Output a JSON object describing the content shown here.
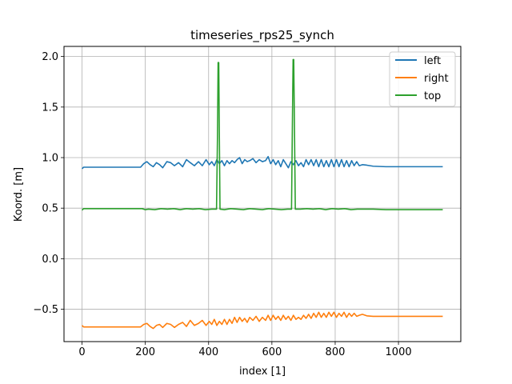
{
  "chart_data": {
    "type": "line",
    "title": "timeseries_rps25_synch",
    "xlabel": "index [1]",
    "ylabel": "Koord. [m]",
    "xlim": [
      -57,
      1197
    ],
    "ylim": [
      -0.82,
      2.1
    ],
    "xticks": [
      0,
      200,
      400,
      600,
      800,
      1000
    ],
    "yticks": [
      -0.5,
      0.0,
      0.5,
      1.0,
      1.5,
      2.0
    ],
    "xtick_labels": [
      "0",
      "200",
      "400",
      "600",
      "800",
      "1000"
    ],
    "ytick_labels": [
      "−0.5",
      "0.0",
      "0.5",
      "1.0",
      "1.5",
      "2.0"
    ],
    "grid": true,
    "legend_position": "top-right",
    "series": [
      {
        "name": "left",
        "color": "#1f77b4",
        "description_points": [
          [
            0,
            0.89
          ],
          [
            5,
            0.905
          ],
          [
            30,
            0.905
          ],
          [
            100,
            0.905
          ],
          [
            185,
            0.905
          ],
          [
            195,
            0.94
          ],
          [
            205,
            0.96
          ],
          [
            215,
            0.93
          ],
          [
            225,
            0.91
          ],
          [
            235,
            0.95
          ],
          [
            245,
            0.93
          ],
          [
            255,
            0.9
          ],
          [
            268,
            0.96
          ],
          [
            280,
            0.95
          ],
          [
            292,
            0.92
          ],
          [
            305,
            0.95
          ],
          [
            318,
            0.91
          ],
          [
            330,
            0.98
          ],
          [
            342,
            0.95
          ],
          [
            355,
            0.92
          ],
          [
            368,
            0.96
          ],
          [
            380,
            0.92
          ],
          [
            392,
            0.98
          ],
          [
            402,
            0.93
          ],
          [
            410,
            0.96
          ],
          [
            418,
            0.92
          ],
          [
            426,
            0.98
          ],
          [
            434,
            0.94
          ],
          [
            442,
            0.97
          ],
          [
            450,
            0.92
          ],
          [
            458,
            0.97
          ],
          [
            466,
            0.94
          ],
          [
            474,
            0.97
          ],
          [
            482,
            0.95
          ],
          [
            490,
            0.98
          ],
          [
            498,
            1.0
          ],
          [
            506,
            0.94
          ],
          [
            514,
            0.98
          ],
          [
            522,
            0.96
          ],
          [
            530,
            0.97
          ],
          [
            540,
            0.99
          ],
          [
            550,
            0.95
          ],
          [
            560,
            0.98
          ],
          [
            570,
            0.96
          ],
          [
            580,
            0.97
          ],
          [
            588,
            1.01
          ],
          [
            596,
            0.94
          ],
          [
            604,
            0.98
          ],
          [
            612,
            0.93
          ],
          [
            620,
            0.97
          ],
          [
            628,
            0.91
          ],
          [
            636,
            0.98
          ],
          [
            644,
            0.94
          ],
          [
            652,
            0.9
          ],
          [
            660,
            0.96
          ],
          [
            668,
            0.93
          ],
          [
            676,
            0.97
          ],
          [
            684,
            0.92
          ],
          [
            692,
            0.95
          ],
          [
            700,
            0.91
          ],
          [
            708,
            0.98
          ],
          [
            716,
            0.93
          ],
          [
            724,
            0.98
          ],
          [
            732,
            0.92
          ],
          [
            740,
            0.98
          ],
          [
            748,
            0.91
          ],
          [
            756,
            0.98
          ],
          [
            764,
            0.91
          ],
          [
            772,
            0.97
          ],
          [
            780,
            0.91
          ],
          [
            788,
            0.98
          ],
          [
            796,
            0.91
          ],
          [
            804,
            0.98
          ],
          [
            812,
            0.91
          ],
          [
            820,
            0.98
          ],
          [
            828,
            0.91
          ],
          [
            836,
            0.97
          ],
          [
            844,
            0.91
          ],
          [
            852,
            0.97
          ],
          [
            860,
            0.92
          ],
          [
            868,
            0.96
          ],
          [
            876,
            0.92
          ],
          [
            886,
            0.93
          ],
          [
            900,
            0.925
          ],
          [
            920,
            0.915
          ],
          [
            960,
            0.91
          ],
          [
            1000,
            0.91
          ],
          [
            1140,
            0.91
          ]
        ]
      },
      {
        "name": "right",
        "color": "#ff7f0e",
        "description_points": [
          [
            0,
            -0.66
          ],
          [
            5,
            -0.675
          ],
          [
            40,
            -0.675
          ],
          [
            120,
            -0.675
          ],
          [
            185,
            -0.675
          ],
          [
            195,
            -0.65
          ],
          [
            205,
            -0.64
          ],
          [
            215,
            -0.67
          ],
          [
            225,
            -0.69
          ],
          [
            235,
            -0.66
          ],
          [
            245,
            -0.65
          ],
          [
            255,
            -0.68
          ],
          [
            268,
            -0.64
          ],
          [
            280,
            -0.65
          ],
          [
            292,
            -0.68
          ],
          [
            305,
            -0.65
          ],
          [
            318,
            -0.63
          ],
          [
            330,
            -0.67
          ],
          [
            342,
            -0.61
          ],
          [
            355,
            -0.66
          ],
          [
            368,
            -0.64
          ],
          [
            380,
            -0.61
          ],
          [
            392,
            -0.66
          ],
          [
            402,
            -0.62
          ],
          [
            410,
            -0.65
          ],
          [
            418,
            -0.6
          ],
          [
            426,
            -0.66
          ],
          [
            434,
            -0.62
          ],
          [
            442,
            -0.65
          ],
          [
            450,
            -0.6
          ],
          [
            458,
            -0.65
          ],
          [
            466,
            -0.6
          ],
          [
            474,
            -0.64
          ],
          [
            482,
            -0.58
          ],
          [
            490,
            -0.63
          ],
          [
            498,
            -0.58
          ],
          [
            506,
            -0.62
          ],
          [
            514,
            -0.59
          ],
          [
            522,
            -0.63
          ],
          [
            530,
            -0.58
          ],
          [
            540,
            -0.61
          ],
          [
            550,
            -0.57
          ],
          [
            560,
            -0.62
          ],
          [
            570,
            -0.58
          ],
          [
            580,
            -0.61
          ],
          [
            588,
            -0.56
          ],
          [
            596,
            -0.61
          ],
          [
            604,
            -0.56
          ],
          [
            612,
            -0.6
          ],
          [
            620,
            -0.57
          ],
          [
            628,
            -0.61
          ],
          [
            636,
            -0.56
          ],
          [
            644,
            -0.6
          ],
          [
            652,
            -0.57
          ],
          [
            660,
            -0.61
          ],
          [
            668,
            -0.56
          ],
          [
            676,
            -0.6
          ],
          [
            684,
            -0.58
          ],
          [
            692,
            -0.6
          ],
          [
            700,
            -0.56
          ],
          [
            708,
            -0.59
          ],
          [
            716,
            -0.55
          ],
          [
            724,
            -0.59
          ],
          [
            732,
            -0.54
          ],
          [
            740,
            -0.58
          ],
          [
            748,
            -0.53
          ],
          [
            756,
            -0.58
          ],
          [
            764,
            -0.54
          ],
          [
            772,
            -0.58
          ],
          [
            780,
            -0.53
          ],
          [
            788,
            -0.57
          ],
          [
            796,
            -0.53
          ],
          [
            804,
            -0.58
          ],
          [
            812,
            -0.54
          ],
          [
            820,
            -0.57
          ],
          [
            828,
            -0.53
          ],
          [
            836,
            -0.58
          ],
          [
            844,
            -0.54
          ],
          [
            852,
            -0.57
          ],
          [
            860,
            -0.54
          ],
          [
            868,
            -0.57
          ],
          [
            876,
            -0.56
          ],
          [
            886,
            -0.55
          ],
          [
            900,
            -0.565
          ],
          [
            920,
            -0.57
          ],
          [
            960,
            -0.57
          ],
          [
            1000,
            -0.57
          ],
          [
            1140,
            -0.57
          ]
        ]
      },
      {
        "name": "top",
        "color": "#2ca02c",
        "description_points": [
          [
            0,
            0.48
          ],
          [
            5,
            0.495
          ],
          [
            60,
            0.495
          ],
          [
            150,
            0.495
          ],
          [
            190,
            0.495
          ],
          [
            200,
            0.485
          ],
          [
            210,
            0.49
          ],
          [
            230,
            0.485
          ],
          [
            250,
            0.495
          ],
          [
            270,
            0.49
          ],
          [
            290,
            0.495
          ],
          [
            310,
            0.485
          ],
          [
            330,
            0.495
          ],
          [
            350,
            0.49
          ],
          [
            370,
            0.495
          ],
          [
            390,
            0.485
          ],
          [
            410,
            0.49
          ],
          [
            425,
            0.49
          ],
          [
            428,
            1.2
          ],
          [
            430,
            1.94
          ],
          [
            432,
            1.94
          ],
          [
            434,
            1.2
          ],
          [
            436,
            0.49
          ],
          [
            450,
            0.485
          ],
          [
            470,
            0.495
          ],
          [
            490,
            0.49
          ],
          [
            510,
            0.485
          ],
          [
            530,
            0.495
          ],
          [
            550,
            0.49
          ],
          [
            570,
            0.485
          ],
          [
            590,
            0.495
          ],
          [
            610,
            0.49
          ],
          [
            630,
            0.485
          ],
          [
            650,
            0.49
          ],
          [
            662,
            0.49
          ],
          [
            665,
            1.4
          ],
          [
            667,
            1.97
          ],
          [
            669,
            1.97
          ],
          [
            671,
            1.4
          ],
          [
            674,
            0.49
          ],
          [
            690,
            0.49
          ],
          [
            710,
            0.495
          ],
          [
            730,
            0.49
          ],
          [
            750,
            0.495
          ],
          [
            770,
            0.485
          ],
          [
            790,
            0.495
          ],
          [
            810,
            0.49
          ],
          [
            830,
            0.495
          ],
          [
            850,
            0.485
          ],
          [
            870,
            0.49
          ],
          [
            890,
            0.49
          ],
          [
            920,
            0.49
          ],
          [
            960,
            0.485
          ],
          [
            1000,
            0.485
          ],
          [
            1140,
            0.485
          ]
        ]
      }
    ]
  }
}
